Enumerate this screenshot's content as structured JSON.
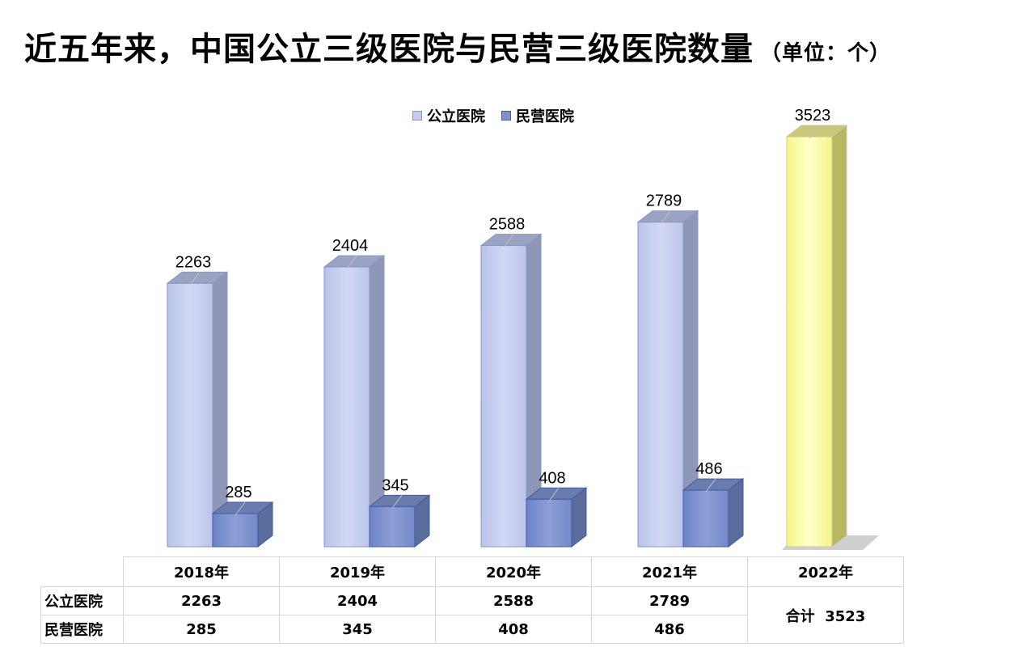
{
  "title": "近五年来，中国公立三级医院与民营三级医院数量",
  "title_unit": "（单位：个）",
  "legend": [
    {
      "label": "公立医院",
      "color": "#c4cbec"
    },
    {
      "label": "民营医院",
      "color": "#7f92cc"
    }
  ],
  "chart_data": {
    "type": "bar",
    "categories": [
      "2018年",
      "2019年",
      "2020年",
      "2021年",
      "2022年"
    ],
    "series": [
      {
        "name": "公立医院",
        "values": [
          2263,
          2404,
          2588,
          2789,
          null
        ]
      },
      {
        "name": "民营医院",
        "values": [
          285,
          345,
          408,
          486,
          null
        ]
      }
    ],
    "total": {
      "category": "2022年",
      "value": 3523,
      "color": "#ffff99"
    },
    "title": "近五年来，中国公立三级医院与民营三级医院数量",
    "ylim": [
      0,
      3600
    ],
    "legend_position": "top-center",
    "grid": false
  },
  "table": {
    "headers": [
      "",
      "2018年",
      "2019年",
      "2020年",
      "2021年",
      "2022年"
    ],
    "rows": [
      {
        "label": "公立医院",
        "values": [
          "2263",
          "2404",
          "2588",
          "2789"
        ]
      },
      {
        "label": "民营医院",
        "values": [
          "285",
          "345",
          "408",
          "486"
        ]
      }
    ],
    "total_label": "合计",
    "total_value": "3523"
  }
}
